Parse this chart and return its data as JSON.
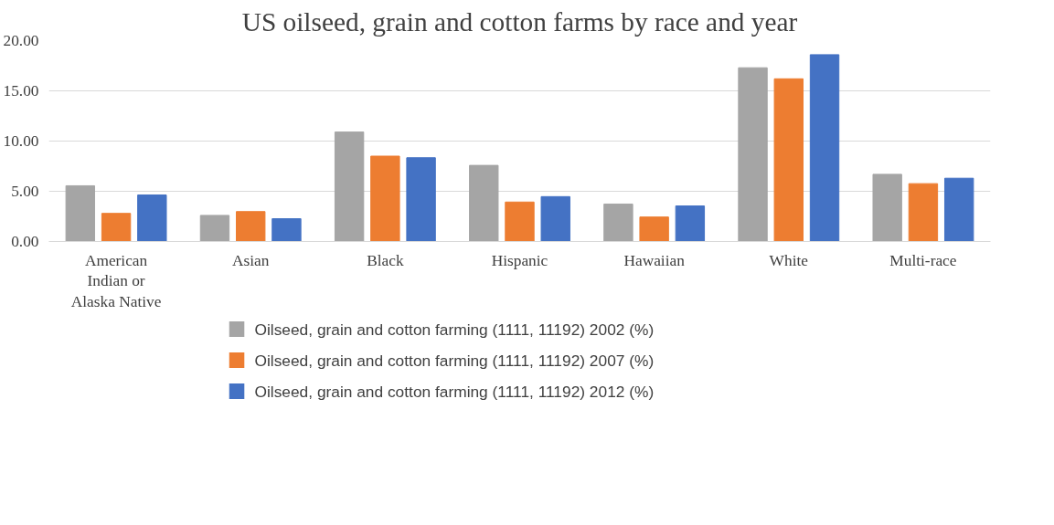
{
  "chart_data": {
    "type": "bar",
    "title": "US oilseed, grain and cotton farms by race and year",
    "categories": [
      "American Indian or Alaska Native",
      "Asian",
      "Black",
      "Hispanic",
      "Hawaiian",
      "White",
      "Multi-race"
    ],
    "series": [
      {
        "name": "Oilseed, grain and cotton farming (1111, 11192) 2002 (%)",
        "color": "#a5a5a5",
        "values": [
          5.55,
          2.6,
          10.9,
          7.58,
          3.73,
          17.3,
          6.69
        ]
      },
      {
        "name": "Oilseed, grain and cotton farming (1111, 11192) 2007 (%)",
        "color": "#ed7d31",
        "values": [
          2.8,
          2.98,
          8.5,
          3.93,
          2.44,
          16.2,
          5.76
        ]
      },
      {
        "name": "Oilseed, grain and cotton farming (1111, 11192) 2012 (%)",
        "color": "#4472c4",
        "values": [
          4.63,
          2.27,
          8.34,
          4.47,
          3.54,
          18.6,
          6.3
        ]
      }
    ],
    "ylim": [
      0,
      20
    ],
    "yticks": [
      {
        "value": 0,
        "label": "0.00"
      },
      {
        "value": 5,
        "label": "5.00"
      },
      {
        "value": 10,
        "label": "10.00"
      },
      {
        "value": 15,
        "label": "15.00"
      },
      {
        "value": 20,
        "label": "20.00"
      }
    ],
    "grid": "y",
    "legend": "bottom"
  }
}
